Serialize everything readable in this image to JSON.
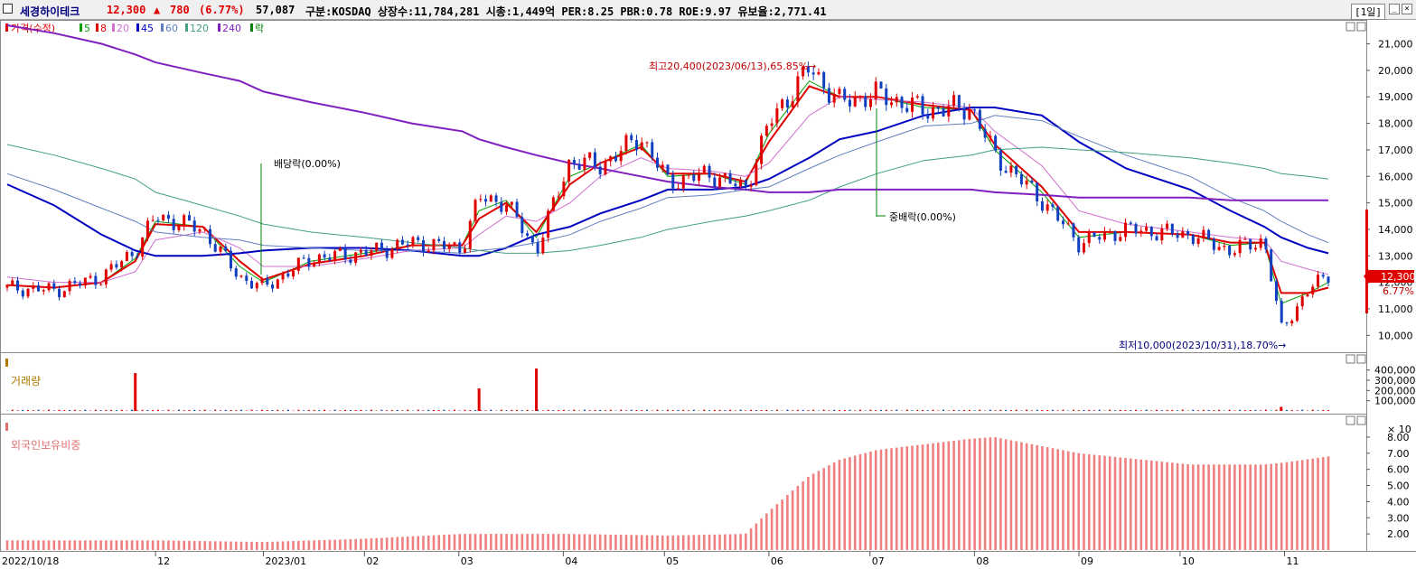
{
  "header": {
    "name": "세경하이테크",
    "price": "12,300",
    "change_arrow": "▲",
    "change": "780",
    "change_pct": "(6.77%)",
    "code": "57,087",
    "info": "구분:KOSDAQ 상장수:11,784,281 시총:1,449억 PER:8.25 PBR:0.78 ROE:9.97 유보율:2,771.41",
    "period": "[1일]",
    "colors": {
      "up": "#e00000",
      "down": "#0040c0",
      "name": "#000080"
    }
  },
  "price_panel": {
    "legend": [
      {
        "label": "가격(수정)",
        "color": "#e00000"
      },
      {
        "label": "5",
        "color": "#00a000"
      },
      {
        "label": "8",
        "color": "#e00000"
      },
      {
        "label": "20",
        "color": "#d070d0"
      },
      {
        "label": "45",
        "color": "#0000c0"
      },
      {
        "label": "60",
        "color": "#6080c0"
      },
      {
        "label": "120",
        "color": "#40a080"
      },
      {
        "label": "240",
        "color": "#8020c0"
      },
      {
        "label": "락",
        "color": "#008000"
      }
    ],
    "annotations": {
      "high": "최고20,400(2023/06/13),65.85%→",
      "low": "최저10,000(2023/10/31),18.70%→",
      "dividend": "배당락(0.00%)",
      "bonus": "중배락(0.00%)"
    },
    "last_price_label": "12,300",
    "last_pct_label": "6.77%"
  },
  "volume_panel": {
    "title": "거래량",
    "unit_label": "× 10"
  },
  "foreign_panel": {
    "title": "외국인보유비중"
  },
  "chart_data": [
    {
      "type": "line",
      "title": "가격(수정)",
      "x": [
        "2022/10/18",
        "2022/11/01",
        "2022/11/15",
        "2022/11/25",
        "2022/12/01",
        "2022/12/15",
        "2022/12/26",
        "2023/01/02",
        "2023/01/16",
        "2023/02/01",
        "2023/02/15",
        "2023/03/02",
        "2023/03/07",
        "2023/03/15",
        "2023/03/24",
        "2023/04/03",
        "2023/04/12",
        "2023/04/24",
        "2023/05/02",
        "2023/05/15",
        "2023/05/25",
        "2023/06/01",
        "2023/06/13",
        "2023/06/22",
        "2023/07/03",
        "2023/07/17",
        "2023/07/31",
        "2023/08/07",
        "2023/08/21",
        "2023/09/01",
        "2023/09/15",
        "2023/10/04",
        "2023/10/16",
        "2023/10/26",
        "2023/10/31",
        "2023/11/08",
        "2023/11/14"
      ],
      "series": [
        {
          "name": "가격(수정)",
          "values": [
            11800,
            11700,
            12200,
            13200,
            14500,
            14000,
            12200,
            11800,
            12900,
            13100,
            13500,
            13300,
            15200,
            15000,
            13200,
            16600,
            16400,
            17500,
            15800,
            16100,
            15500,
            18000,
            20100,
            18800,
            19100,
            18500,
            18600,
            16800,
            15100,
            13500,
            14000,
            13800,
            13200,
            13600,
            10200,
            11700,
            12300
          ]
        },
        {
          "name": "5",
          "values": [
            11900,
            11800,
            12000,
            12900,
            14300,
            14100,
            12600,
            12000,
            12800,
            13100,
            13400,
            13400,
            14700,
            15100,
            13700,
            16000,
            16500,
            17200,
            16000,
            16100,
            15700,
            17600,
            19600,
            19000,
            19000,
            18600,
            18500,
            17000,
            15400,
            13700,
            13900,
            13800,
            13400,
            13500,
            11200,
            11600,
            12000
          ]
        },
        {
          "name": "8",
          "values": [
            11900,
            11800,
            12000,
            12800,
            14200,
            14100,
            12800,
            12100,
            12700,
            13000,
            13400,
            13400,
            14400,
            15000,
            13900,
            15700,
            16500,
            17100,
            16100,
            16100,
            15800,
            17300,
            19400,
            19000,
            19000,
            18700,
            18500,
            17200,
            15600,
            13900,
            13900,
            13800,
            13500,
            13500,
            11600,
            11600,
            11800
          ]
        },
        {
          "name": "20",
          "values": [
            12200,
            12000,
            12000,
            12400,
            13600,
            13900,
            13300,
            12600,
            12600,
            12900,
            13200,
            13300,
            13800,
            14500,
            14300,
            15000,
            16000,
            16700,
            16300,
            16200,
            16000,
            16500,
            18300,
            19000,
            18900,
            18800,
            18600,
            17700,
            16400,
            14700,
            14200,
            13900,
            13700,
            13600,
            12800,
            12500,
            12300
          ]
        },
        {
          "name": "45",
          "values": [
            15700,
            14900,
            13800,
            13200,
            13000,
            13000,
            13100,
            13200,
            13300,
            13300,
            13200,
            13000,
            13000,
            13300,
            13800,
            14100,
            14600,
            15100,
            15500,
            15500,
            15600,
            15900,
            16700,
            17400,
            17700,
            18300,
            18600,
            18600,
            18300,
            17300,
            16300,
            15500,
            14700,
            14100,
            13700,
            13300,
            13100
          ]
        },
        {
          "name": "60",
          "values": [
            16100,
            15500,
            14800,
            14300,
            13900,
            13700,
            13600,
            13400,
            13300,
            13200,
            13200,
            13100,
            13200,
            13300,
            13500,
            13800,
            14300,
            14800,
            15200,
            15300,
            15500,
            15600,
            16300,
            16800,
            17300,
            17900,
            18000,
            18300,
            18100,
            17500,
            16800,
            16000,
            15200,
            14700,
            14300,
            13800,
            13500
          ]
        },
        {
          "name": "120",
          "values": [
            17200,
            16800,
            16300,
            15900,
            15400,
            14900,
            14500,
            14200,
            13900,
            13700,
            13500,
            13300,
            13200,
            13100,
            13100,
            13200,
            13400,
            13700,
            14000,
            14300,
            14500,
            14700,
            15100,
            15600,
            16100,
            16600,
            16800,
            17000,
            17100,
            17000,
            16900,
            16700,
            16500,
            16300,
            16100,
            16000,
            15900
          ]
        },
        {
          "name": "240",
          "values": [
            21700,
            21400,
            21000,
            20600,
            20300,
            19900,
            19600,
            19200,
            18800,
            18400,
            18000,
            17700,
            17400,
            17100,
            16800,
            16500,
            16300,
            16000,
            15800,
            15600,
            15500,
            15400,
            15400,
            15500,
            15500,
            15500,
            15500,
            15400,
            15300,
            15200,
            15200,
            15200,
            15100,
            15100,
            15100,
            15100,
            15100
          ]
        }
      ],
      "ylim": [
        9500,
        21700
      ],
      "yticks": [
        "21,000",
        "20,000",
        "19,000",
        "18,000",
        "17,000",
        "16,000",
        "15,000",
        "14,000",
        "13,000",
        "12,000",
        "11,000",
        "10,000"
      ]
    },
    {
      "type": "bar",
      "title": "거래량",
      "x": [
        "2022/11/25",
        "2023/03/07",
        "2023/03/24",
        "2023/10/31"
      ],
      "values": [
        37000,
        22000,
        41500,
        4000
      ],
      "ylim": [
        0,
        45000
      ],
      "yticks": [
        "400,000",
        "300,000",
        "200,000",
        "100,000"
      ]
    },
    {
      "type": "bar",
      "title": "외국인보유비중",
      "x": [
        "2022/10/18",
        "2022/12/01",
        "2023/01/02",
        "2023/02/01",
        "2023/03/02",
        "2023/04/03",
        "2023/05/02",
        "2023/05/25",
        "2023/06/01",
        "2023/06/13",
        "2023/06/22",
        "2023/07/03",
        "2023/07/31",
        "2023/08/07",
        "2023/09/01",
        "2023/10/04",
        "2023/10/26",
        "2023/10/31",
        "2023/11/14"
      ],
      "values": [
        1.6,
        1.6,
        1.5,
        1.7,
        2.0,
        2.0,
        1.9,
        2.0,
        3.4,
        5.6,
        6.6,
        7.2,
        7.9,
        8.0,
        7.0,
        6.3,
        6.3,
        6.4,
        6.8
      ],
      "ylim": [
        1.0,
        8.5
      ],
      "yticks": [
        "8.00",
        "7.00",
        "6.00",
        "5.00",
        "4.00",
        "3.00",
        "2.00"
      ]
    }
  ],
  "x_axis_labels": [
    "2022/10/18",
    "12",
    "2023/01",
    "02",
    "03",
    "04",
    "05",
    "06",
    "07",
    "08",
    "09",
    "10",
    "11"
  ]
}
